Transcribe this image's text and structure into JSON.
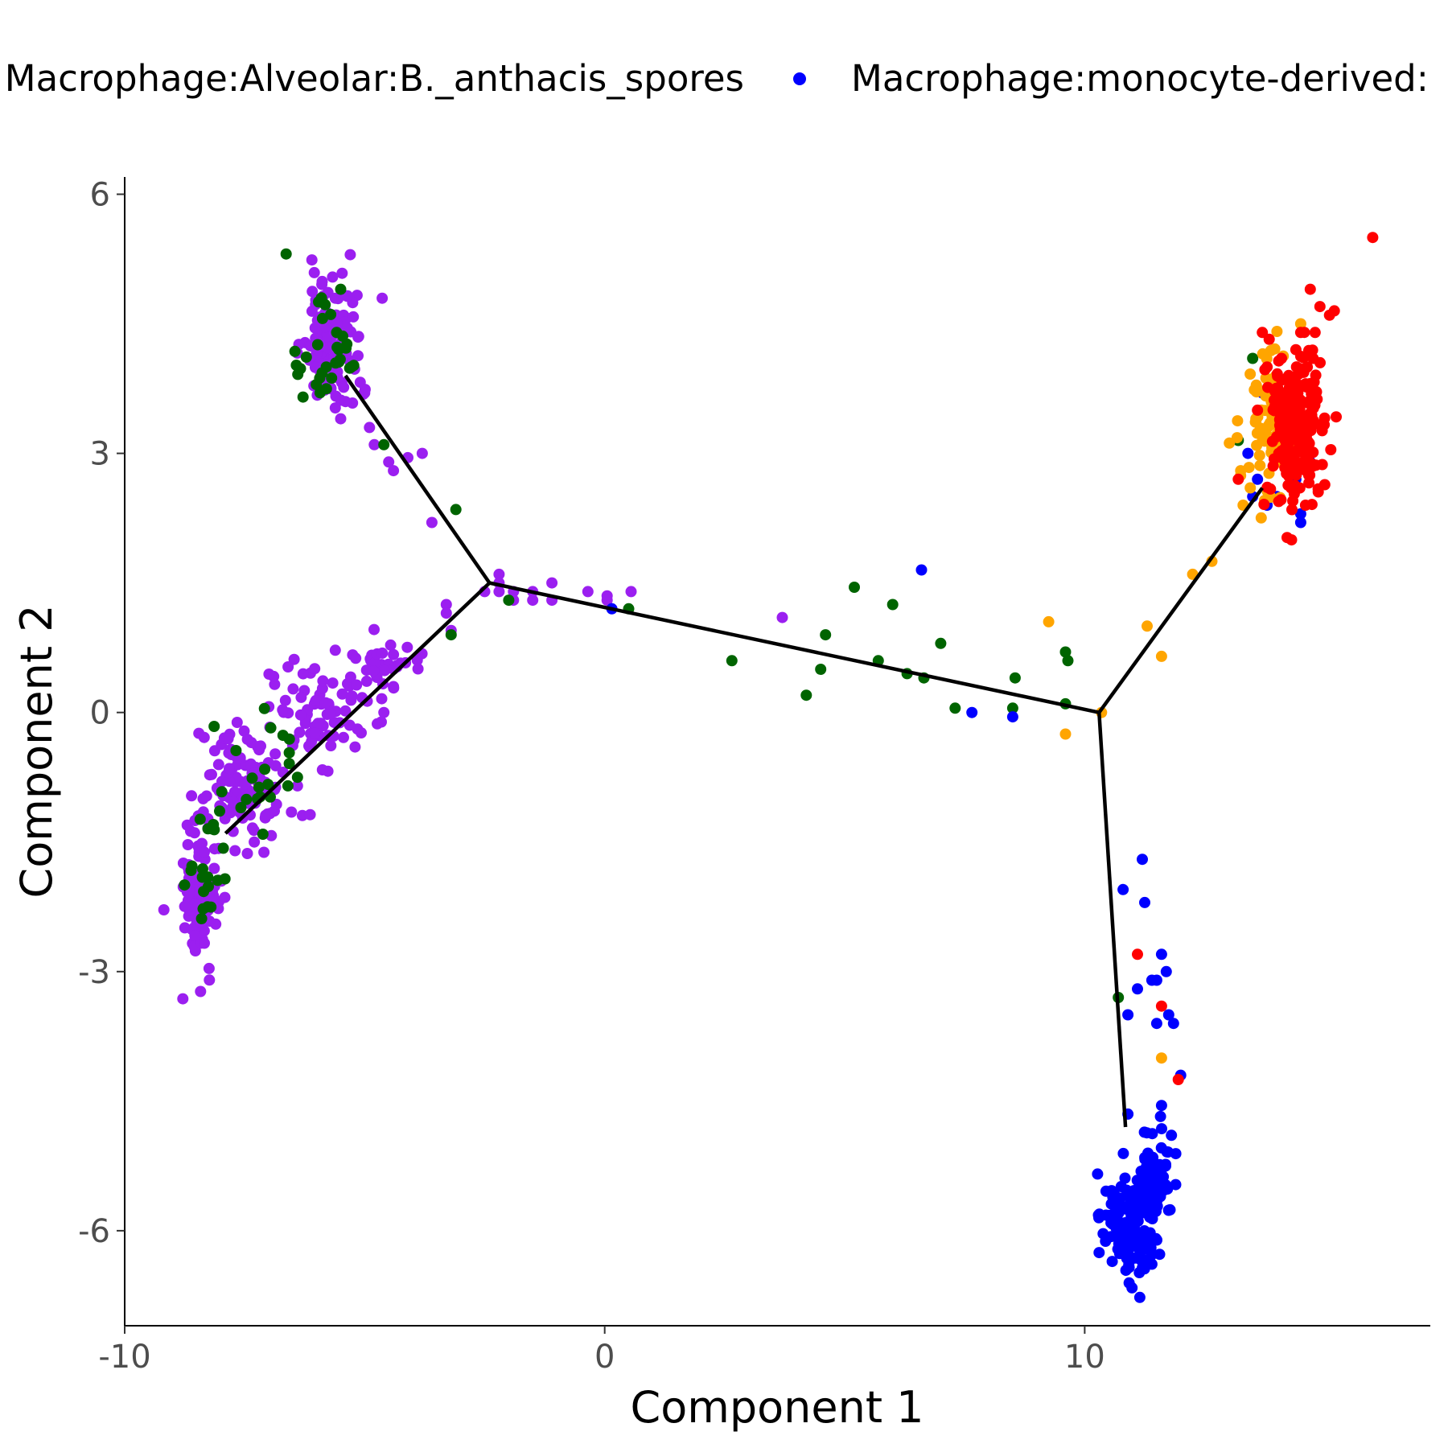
{
  "chart_data": {
    "type": "scatter",
    "xlabel": "Component 1",
    "ylabel": "Component 2",
    "xlim": [
      -10,
      17.2
    ],
    "ylim": [
      -7.1,
      6.2
    ],
    "xticks": [
      -10,
      0,
      10
    ],
    "yticks": [
      -6,
      -3,
      0,
      3,
      6
    ],
    "grid": false,
    "legend_position": "top",
    "legend": [
      {
        "label": "Macrophage:Alveolar:B._anthacis_spores",
        "color": "#9B1FF0"
      },
      {
        "label": "Macrophage:monocyte-derived:",
        "color": "#0000FF"
      }
    ],
    "trajectory": {
      "color": "#000000",
      "segments": [
        [
          [
            -2.4,
            1.5
          ],
          [
            -5.4,
            3.9
          ]
        ],
        [
          [
            -2.4,
            1.5
          ],
          [
            -7.9,
            -1.4
          ]
        ],
        [
          [
            -2.4,
            1.5
          ],
          [
            10.3,
            0.0
          ]
        ],
        [
          [
            10.3,
            0.0
          ],
          [
            13.7,
            2.6
          ]
        ],
        [
          [
            10.3,
            0.0
          ],
          [
            10.85,
            -4.8
          ]
        ]
      ]
    },
    "series": [
      {
        "color": "#9B1FF0",
        "clusters": [
          {
            "cx": -5.7,
            "cy": 4.3,
            "sx": 0.3,
            "sy": 0.4,
            "n": 110
          },
          {
            "cx": -8.4,
            "cy": -2.1,
            "sx": 0.2,
            "sy": 0.45,
            "n": 120
          },
          {
            "cx": -7.5,
            "cy": -0.85,
            "sx": 0.45,
            "sy": 0.35,
            "n": 110
          },
          {
            "cx": -6.0,
            "cy": 0.0,
            "sx": 0.45,
            "sy": 0.3,
            "n": 70
          },
          {
            "cx": -4.6,
            "cy": 0.55,
            "sx": 0.35,
            "sy": 0.15,
            "n": 40
          }
        ],
        "points": [
          [
            -5.3,
            5.3
          ],
          [
            -5.4,
            3.6
          ],
          [
            -5.0,
            3.7
          ],
          [
            -5.5,
            3.4
          ],
          [
            -4.9,
            3.3
          ],
          [
            -4.8,
            3.1
          ],
          [
            -4.5,
            2.9
          ],
          [
            -4.4,
            2.8
          ],
          [
            -4.1,
            2.95
          ],
          [
            -3.8,
            3.0
          ],
          [
            -3.6,
            2.2
          ],
          [
            -3.3,
            1.25
          ],
          [
            -3.3,
            1.15
          ],
          [
            -3.2,
            0.95
          ],
          [
            -2.2,
            1.6
          ],
          [
            -2.2,
            1.5
          ],
          [
            -2.2,
            1.4
          ],
          [
            -2.5,
            1.4
          ],
          [
            -1.9,
            1.4
          ],
          [
            -1.9,
            1.3
          ],
          [
            -1.5,
            1.4
          ],
          [
            -1.5,
            1.3
          ],
          [
            -1.1,
            1.3
          ],
          [
            -1.1,
            1.5
          ],
          [
            -0.35,
            1.4
          ],
          [
            0.05,
            1.35
          ],
          [
            0.05,
            1.3
          ],
          [
            0.55,
            1.4
          ],
          [
            3.7,
            1.1
          ],
          [
            -4.6,
            0.0
          ],
          [
            -4.4,
            0.3
          ],
          [
            -5.2,
            -0.4
          ],
          [
            -6.4,
            -0.85
          ],
          [
            -7.3,
            -1.5
          ],
          [
            -7.7,
            -1.6
          ]
        ]
      },
      {
        "color": "#006400",
        "clusters": [
          {
            "cx": -5.75,
            "cy": 4.2,
            "sx": 0.3,
            "sy": 0.35,
            "n": 30
          },
          {
            "cx": -8.3,
            "cy": -2.0,
            "sx": 0.2,
            "sy": 0.5,
            "n": 20
          },
          {
            "cx": -7.4,
            "cy": -0.7,
            "sx": 0.5,
            "sy": 0.35,
            "n": 20
          }
        ],
        "points": [
          [
            -5.9,
            4.8
          ],
          [
            -5.8,
            4.0
          ],
          [
            -5.5,
            4.9
          ],
          [
            -4.6,
            3.1
          ],
          [
            -3.1,
            2.35
          ],
          [
            -3.2,
            0.9
          ],
          [
            -2.0,
            1.3
          ],
          [
            0.5,
            1.2
          ],
          [
            2.65,
            0.6
          ],
          [
            4.2,
            0.2
          ],
          [
            4.5,
            0.5
          ],
          [
            4.6,
            0.9
          ],
          [
            5.2,
            1.45
          ],
          [
            5.7,
            0.6
          ],
          [
            6.0,
            1.25
          ],
          [
            6.3,
            0.45
          ],
          [
            6.65,
            0.4
          ],
          [
            7.0,
            0.8
          ],
          [
            7.3,
            0.05
          ],
          [
            8.5,
            0.05
          ],
          [
            8.55,
            0.4
          ],
          [
            9.6,
            0.7
          ],
          [
            9.65,
            0.6
          ],
          [
            9.6,
            0.1
          ],
          [
            10.7,
            -3.3
          ],
          [
            13.5,
            4.1
          ],
          [
            13.2,
            3.15
          ],
          [
            -6.4,
            -0.75
          ],
          [
            -6.6,
            -0.85
          ]
        ]
      },
      {
        "color": "#0000FF",
        "clusters": [
          {
            "cx": 10.95,
            "cy": -5.95,
            "sx": 0.28,
            "sy": 0.3,
            "n": 140
          },
          {
            "cx": 11.45,
            "cy": -5.35,
            "sx": 0.2,
            "sy": 0.28,
            "n": 90
          }
        ],
        "points": [
          [
            0.15,
            1.2
          ],
          [
            6.6,
            1.65
          ],
          [
            7.65,
            0.0
          ],
          [
            8.5,
            -0.05
          ],
          [
            11.2,
            -1.7
          ],
          [
            10.8,
            -2.05
          ],
          [
            11.25,
            -2.2
          ],
          [
            11.6,
            -2.8
          ],
          [
            11.1,
            -3.2
          ],
          [
            11.4,
            -3.1
          ],
          [
            11.5,
            -3.1
          ],
          [
            11.7,
            -3.0
          ],
          [
            10.9,
            -3.5
          ],
          [
            11.5,
            -3.6
          ],
          [
            11.75,
            -3.5
          ],
          [
            11.85,
            -3.6
          ],
          [
            12.0,
            -4.2
          ],
          [
            11.6,
            -4.55
          ],
          [
            10.9,
            -4.65
          ],
          [
            13.7,
            3.7
          ],
          [
            13.4,
            3.0
          ],
          [
            13.5,
            2.5
          ],
          [
            13.8,
            2.4
          ],
          [
            14.0,
            2.5
          ],
          [
            14.4,
            2.7
          ],
          [
            14.5,
            2.3
          ],
          [
            14.5,
            2.2
          ],
          [
            14.7,
            2.9
          ],
          [
            13.6,
            2.7
          ],
          [
            14.1,
            3.1
          ]
        ]
      },
      {
        "color": "#FFA500",
        "clusters": [
          {
            "cx": 13.95,
            "cy": 3.4,
            "sx": 0.35,
            "sy": 0.4,
            "n": 90
          }
        ],
        "points": [
          [
            9.25,
            1.05
          ],
          [
            9.6,
            -0.25
          ],
          [
            10.35,
            0.0
          ],
          [
            11.3,
            1.0
          ],
          [
            11.6,
            0.65
          ],
          [
            12.25,
            1.6
          ],
          [
            12.65,
            1.75
          ],
          [
            13.3,
            2.4
          ],
          [
            13.45,
            2.6
          ],
          [
            14.5,
            4.5
          ],
          [
            11.6,
            -4.0
          ],
          [
            13.25,
            2.8
          ]
        ]
      },
      {
        "color": "#FF0000",
        "clusters": [
          {
            "cx": 14.4,
            "cy": 3.3,
            "sx": 0.25,
            "sy": 0.45,
            "n": 220
          }
        ],
        "points": [
          [
            16.0,
            5.5
          ],
          [
            14.7,
            4.9
          ],
          [
            14.9,
            4.7
          ],
          [
            15.2,
            4.65
          ],
          [
            15.1,
            4.6
          ],
          [
            13.7,
            4.4
          ],
          [
            14.5,
            4.4
          ],
          [
            14.8,
            4.4
          ],
          [
            14.4,
            4.2
          ],
          [
            14.1,
            4.1
          ],
          [
            13.8,
            4.0
          ],
          [
            13.6,
            3.5
          ],
          [
            11.1,
            -2.8
          ],
          [
            11.6,
            -3.4
          ],
          [
            11.95,
            -4.25
          ],
          [
            13.2,
            2.7
          ],
          [
            14.3,
            2.6
          ],
          [
            14.6,
            2.4
          ]
        ]
      }
    ]
  }
}
